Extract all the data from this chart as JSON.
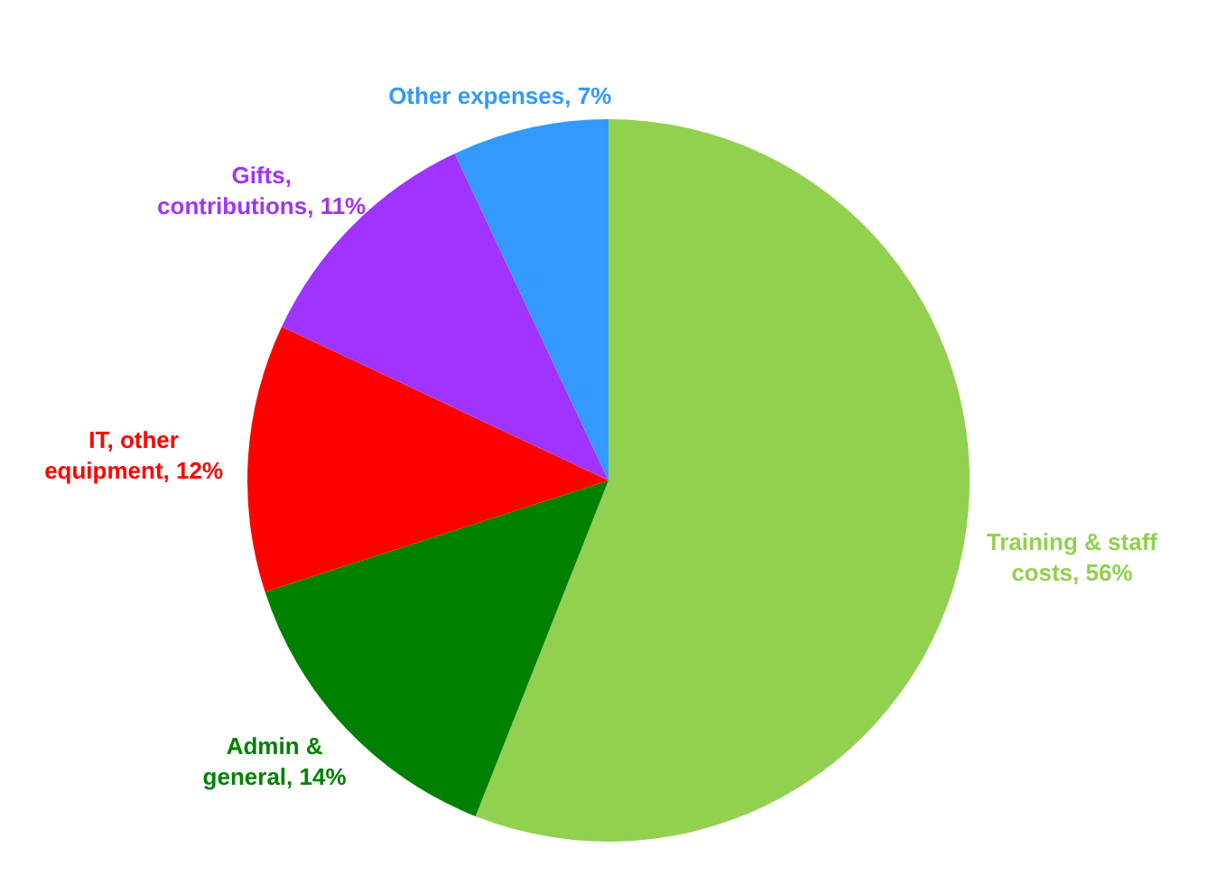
{
  "chart_data": {
    "type": "pie",
    "categories": [
      "Training & staff costs",
      "Admin & general",
      "IT, other equipment",
      "Gifts, contributions",
      "Other expenses"
    ],
    "values": [
      56,
      14,
      12,
      11,
      7
    ],
    "colors": [
      "#92d050",
      "#008000",
      "#ff0000",
      "#a033ff",
      "#3399ff"
    ],
    "value_labels": [
      ", 56%",
      ", 14%",
      ", 12%",
      ", 11%",
      ", 7%"
    ],
    "legend": false
  }
}
